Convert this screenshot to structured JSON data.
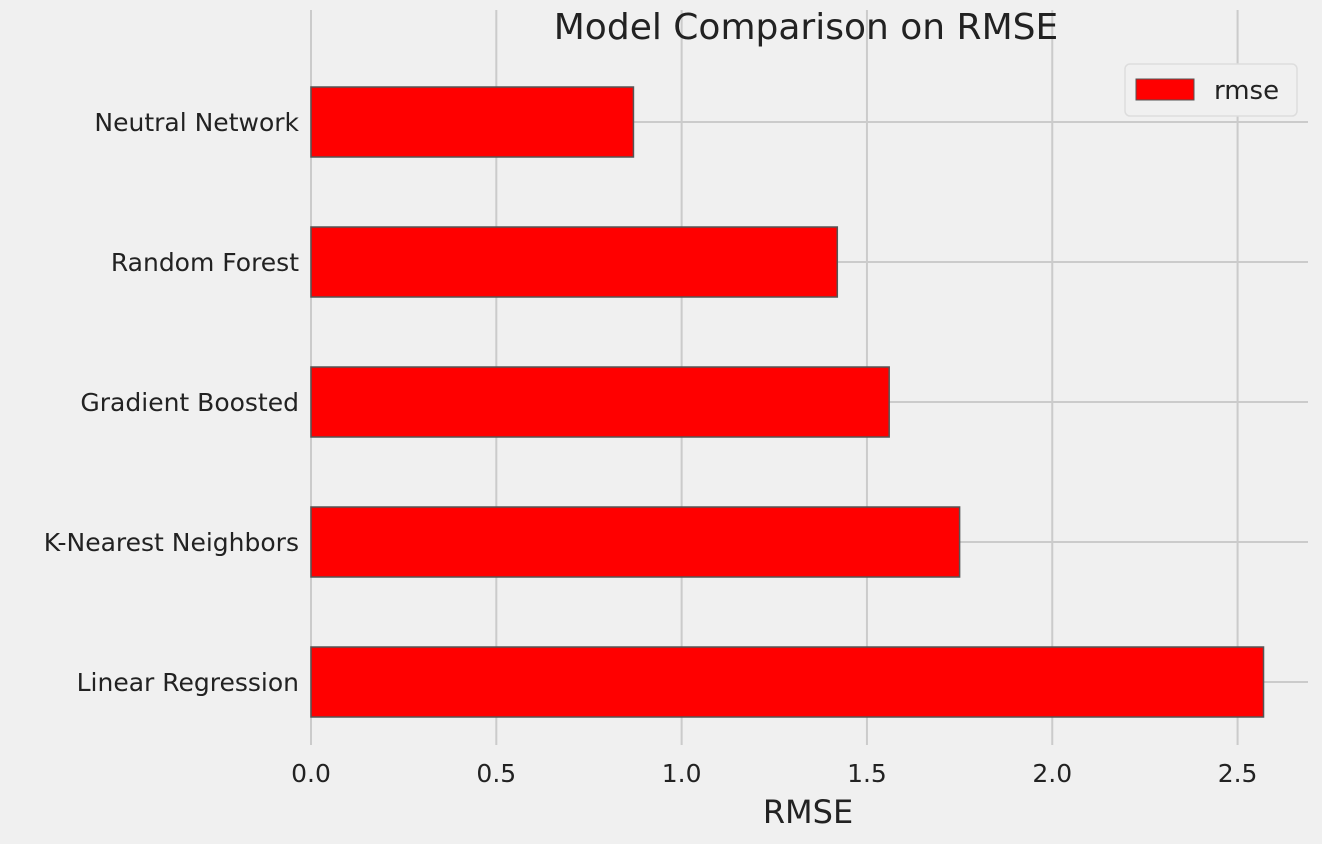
{
  "chart_data": {
    "type": "bar",
    "orientation": "horizontal",
    "title": "Model Comparison on RMSE",
    "xlabel": "RMSE",
    "ylabel": "",
    "categories": [
      "Neutral Network",
      "Random Forest",
      "Gradient Boosted",
      "K-Nearest Neighbors",
      "Linear Regression"
    ],
    "series": [
      {
        "name": "rmse",
        "values": [
          0.87,
          1.42,
          1.56,
          1.75,
          2.57
        ],
        "color": "#ff0000"
      }
    ],
    "xlim": [
      0,
      2.69
    ],
    "xticks": [
      0.0,
      0.5,
      1.0,
      1.5,
      2.0,
      2.5
    ],
    "xtick_labels": [
      "0.0",
      "0.5",
      "1.0",
      "1.5",
      "2.0",
      "2.5"
    ],
    "grid": true,
    "legend_position": "top-right",
    "bar_edge_color": "#555555",
    "background_color": "#f0f0f0",
    "grid_color": "#cbcbcb"
  }
}
